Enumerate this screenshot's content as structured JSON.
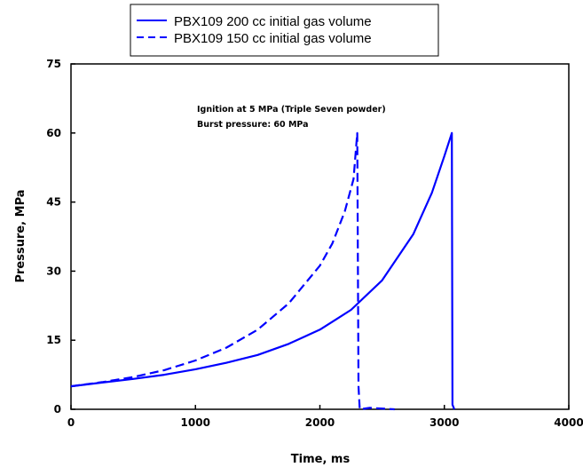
{
  "chart_data": {
    "type": "line",
    "xlabel": "Time, ms",
    "ylabel": "Pressure, MPa",
    "xlim": [
      0,
      4000
    ],
    "ylim": [
      0,
      75
    ],
    "xticks": [
      0,
      1000,
      2000,
      3000,
      4000
    ],
    "yticks": [
      0,
      15,
      30,
      45,
      60,
      75
    ],
    "grid": false,
    "legend_position": "top",
    "annotations": [
      "Ignition at 5 MPa (Triple Seven powder)",
      "Burst pressure: 60 MPa"
    ],
    "series": [
      {
        "name": "PBX109 200 cc initial gas volume",
        "style": "solid",
        "color": "#0000ff",
        "x": [
          0,
          250,
          500,
          750,
          1000,
          1250,
          1500,
          1750,
          2000,
          2250,
          2500,
          2750,
          2900,
          3000,
          3060,
          3065,
          3080
        ],
        "y": [
          5,
          5.8,
          6.6,
          7.5,
          8.7,
          10.1,
          11.8,
          14.2,
          17.3,
          21.6,
          28,
          38,
          47,
          55,
          60,
          1,
          0
        ]
      },
      {
        "name": "PBX109 150 cc initial gas volume",
        "style": "dashed",
        "color": "#0000ff",
        "x": [
          0,
          250,
          500,
          750,
          1000,
          1250,
          1500,
          1750,
          2000,
          2100,
          2200,
          2270,
          2300,
          2310,
          2320,
          2400,
          2600
        ],
        "y": [
          5,
          5.9,
          7,
          8.5,
          10.6,
          13.4,
          17.3,
          23,
          31.2,
          36,
          43,
          50,
          60,
          5,
          0,
          0.3,
          0
        ]
      }
    ]
  }
}
